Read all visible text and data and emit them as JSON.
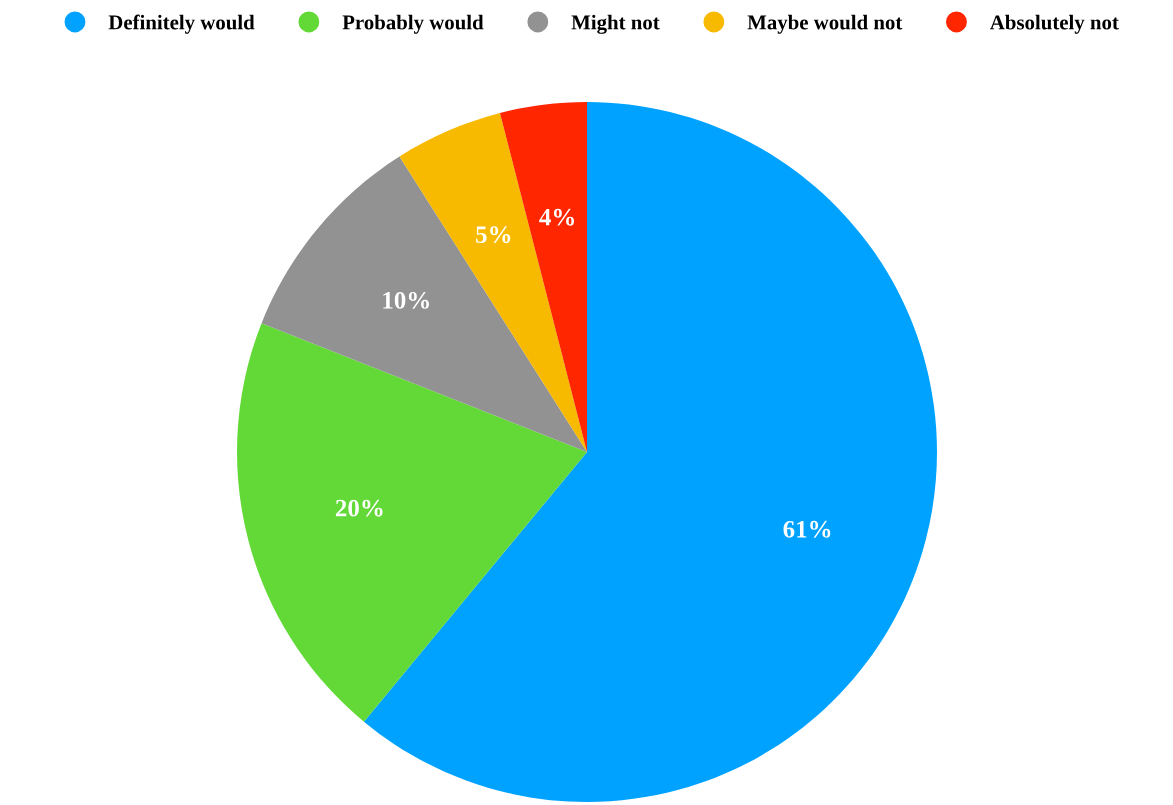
{
  "chart_data": {
    "type": "pie",
    "categories": [
      "Definitely would",
      "Probably would",
      "Might not",
      "Maybe would not",
      "Absolutely not"
    ],
    "values": [
      61,
      20,
      10,
      5,
      4
    ],
    "colors": [
      "#00a2ff",
      "#62d936",
      "#929292",
      "#f8ba00",
      "#ff2600"
    ],
    "value_labels": [
      "61%",
      "20%",
      "10%",
      "5%",
      "4%"
    ],
    "legend": "top"
  }
}
